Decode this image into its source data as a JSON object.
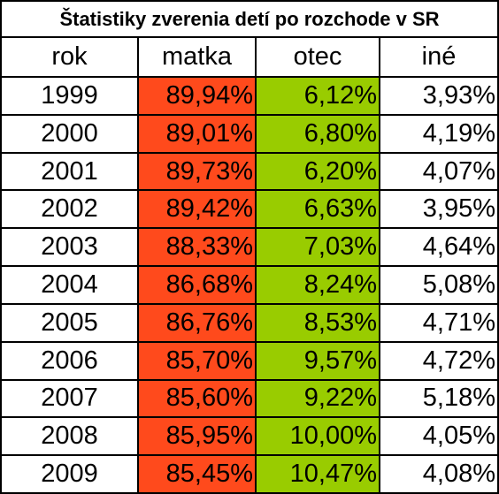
{
  "title": "Štatistiky zverenia detí po rozchode v SR",
  "table": {
    "header": [
      "rok",
      "matka",
      "otec",
      "iné"
    ],
    "rows": [
      [
        "1999",
        "89,94%",
        "6,12%",
        "3,93%"
      ],
      [
        "2000",
        "89,01%",
        "6,80%",
        "4,19%"
      ],
      [
        "2001",
        "89,73%",
        "6,20%",
        "4,07%"
      ],
      [
        "2002",
        "89,42%",
        "6,63%",
        "3,95%"
      ],
      [
        "2003",
        "88,33%",
        "7,03%",
        "4,64%"
      ],
      [
        "2004",
        "86,68%",
        "8,24%",
        "5,08%"
      ],
      [
        "2005",
        "86,76%",
        "8,53%",
        "4,71%"
      ],
      [
        "2006",
        "85,70%",
        "9,57%",
        "4,72%"
      ],
      [
        "2007",
        "85,60%",
        "9,22%",
        "5,18%"
      ],
      [
        "2008",
        "85,95%",
        "10,00%",
        "4,05%"
      ],
      [
        "2009",
        "85,45%",
        "10,47%",
        "4,08%"
      ]
    ]
  }
}
